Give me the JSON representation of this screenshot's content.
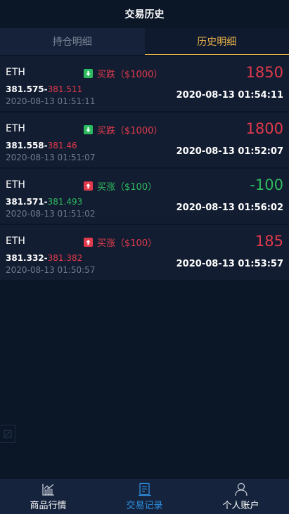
{
  "header": {
    "title": "交易历史"
  },
  "tabs": [
    {
      "label": "持仓明细",
      "active": false
    },
    {
      "label": "历史明细",
      "active": true
    }
  ],
  "records": [
    {
      "symbol": "ETH",
      "direction": "买跌（$1000）",
      "direction_type": "down",
      "open_price": "381.575-",
      "close_price": "381.511",
      "close_price_color": "red",
      "open_time": "2020-08-13 01:51:11",
      "pnl": "1850",
      "pnl_color": "red",
      "close_time": "2020-08-13 01:54:11"
    },
    {
      "symbol": "ETH",
      "direction": "买跌（$1000）",
      "direction_type": "down",
      "open_price": "381.558-",
      "close_price": "381.46",
      "close_price_color": "red",
      "open_time": "2020-08-13 01:51:07",
      "pnl": "1800",
      "pnl_color": "red",
      "close_time": "2020-08-13 01:52:07"
    },
    {
      "symbol": "ETH",
      "direction": "买涨（$100）",
      "direction_type": "up",
      "open_price": "381.571-",
      "close_price": "381.493",
      "close_price_color": "green",
      "open_time": "2020-08-13 01:51:02",
      "pnl": "-100",
      "pnl_color": "green",
      "close_time": "2020-08-13 01:56:02"
    },
    {
      "symbol": "ETH",
      "direction": "买涨（$100）",
      "direction_type": "up",
      "open_price": "381.332-",
      "close_price": "381.382",
      "close_price_color": "red",
      "open_time": "2020-08-13 01:50:57",
      "pnl": "185",
      "pnl_color": "red",
      "close_time": "2020-08-13 01:53:57"
    }
  ],
  "bottom_nav": [
    {
      "label": "商品行情",
      "icon": "chart-icon",
      "active": false
    },
    {
      "label": "交易记录",
      "icon": "record-icon",
      "active": true
    },
    {
      "label": "个人账户",
      "icon": "user-icon",
      "active": false
    }
  ],
  "colors": {
    "background": "#0b1627",
    "card": "#131d31",
    "accent_gold": "#e7b04a",
    "red": "#e23a4c",
    "green": "#2dbb5f",
    "nav_active": "#2f8fe0"
  }
}
